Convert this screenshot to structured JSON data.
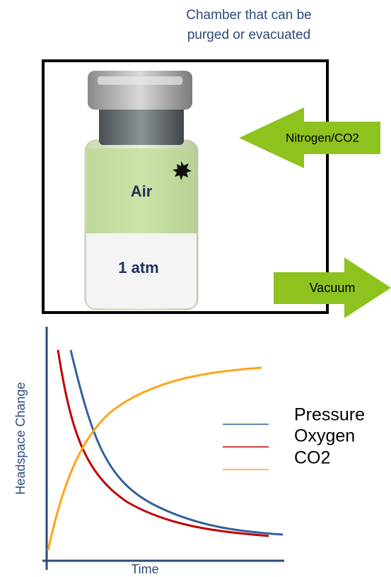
{
  "chamber": {
    "title_lines": [
      "Chamber that can be",
      "purged or evacuated"
    ]
  },
  "vial": {
    "headspace_label": "Air",
    "pressure_label": "1 atm"
  },
  "arrows": {
    "inlet": "Nitrogen/CO2",
    "outlet": "Vacuum"
  },
  "chart": {
    "y_axis_label": "Headspace Change",
    "x_axis_label": "Time",
    "legend": [
      "Pressure",
      "Oxygen",
      "CO2"
    ]
  }
}
